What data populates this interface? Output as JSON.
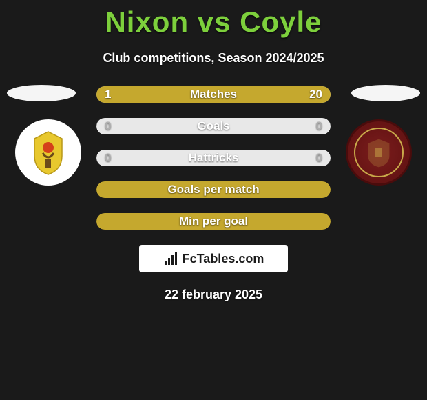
{
  "title": "Nixon vs Coyle",
  "subtitle": "Club competitions, Season 2024/2025",
  "colors": {
    "background": "#1a1a1a",
    "accent_green": "#7dd03c",
    "bar_fill": "#c5a82e",
    "bar_neutral": "#e8e8e8",
    "text": "#ffffff"
  },
  "left": {
    "country_flag_shape": "ellipse",
    "club_bg": "#ffffff",
    "club_logo_desc": "yellow-crest-viking"
  },
  "right": {
    "country_flag_shape": "ellipse",
    "club_bg": "#7a1c1c",
    "club_logo_desc": "accrington-stanley-crest"
  },
  "stats": [
    {
      "label": "Matches",
      "left_val": "1",
      "right_val": "20",
      "left_pct": 4.8,
      "right_pct": 95.2,
      "mode": "split"
    },
    {
      "label": "Goals",
      "left_val": "0",
      "right_val": "0",
      "mode": "neutral"
    },
    {
      "label": "Hattricks",
      "left_val": "0",
      "right_val": "0",
      "mode": "neutral"
    },
    {
      "label": "Goals per match",
      "mode": "full"
    },
    {
      "label": "Min per goal",
      "mode": "full"
    }
  ],
  "footer_brand": "FcTables.com",
  "footer_date": "22 february 2025"
}
